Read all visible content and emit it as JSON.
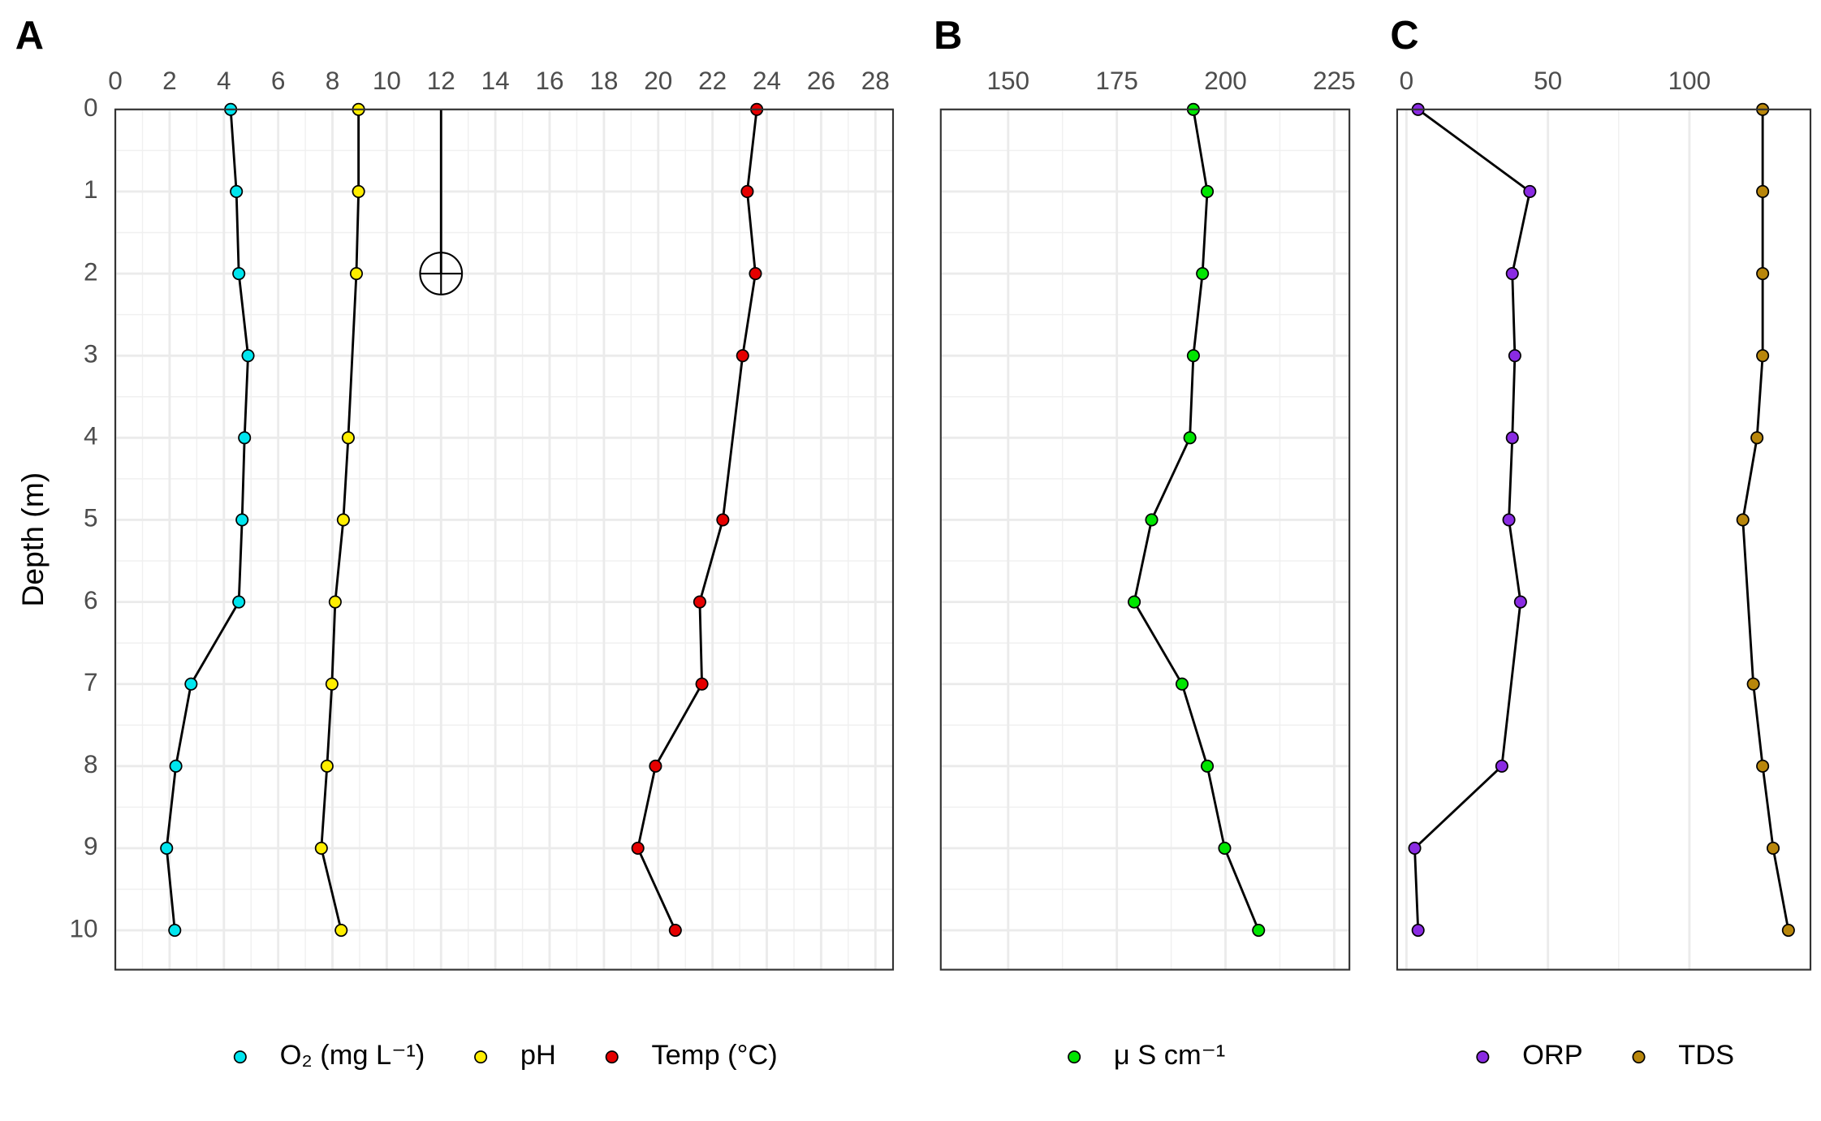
{
  "chart_data": [
    {
      "type": "line",
      "panel": "A",
      "y_label": "Depth (m)",
      "xlim": [
        0,
        28.65
      ],
      "xticks": [
        0,
        2,
        4,
        6,
        8,
        10,
        12,
        14,
        16,
        18,
        20,
        22,
        24,
        26,
        28
      ],
      "ylim": [
        0,
        10.48
      ],
      "yticks": [
        0,
        1,
        2,
        3,
        4,
        5,
        6,
        7,
        8,
        9,
        10
      ],
      "ygrid": true,
      "marker": {
        "x": 12,
        "y": 2
      },
      "series": [
        {
          "name": "O₂ (mg L⁻¹)",
          "color": "#00e5ee",
          "x": [
            4.25,
            4.46,
            4.55,
            4.89,
            4.76,
            4.67,
            4.55,
            2.79,
            2.23,
            1.89,
            2.19
          ],
          "y": [
            0,
            1,
            2,
            3,
            4,
            5,
            6,
            7,
            8,
            9,
            10
          ]
        },
        {
          "name": "pH",
          "color": "#ffee00",
          "x": [
            8.96,
            8.96,
            8.88,
            8.58,
            8.4,
            8.1,
            7.98,
            7.8,
            7.59,
            8.32
          ],
          "y": [
            0,
            1,
            2,
            4,
            5,
            6,
            7,
            8,
            9,
            10
          ]
        },
        {
          "name": "Temp (°C)",
          "color": "#e50000",
          "x": [
            23.63,
            23.28,
            23.58,
            23.11,
            22.38,
            21.53,
            21.61,
            19.9,
            19.25,
            20.63
          ],
          "y": [
            0,
            1,
            2,
            3,
            5,
            6,
            7,
            8,
            9,
            10
          ]
        }
      ]
    },
    {
      "type": "line",
      "panel": "B",
      "xlim": [
        134.5,
        228.5
      ],
      "xticks": [
        150,
        175,
        200,
        225
      ],
      "ylim": [
        0,
        10.48
      ],
      "ygrid": true,
      "series": [
        {
          "name": "μ S cm⁻¹",
          "color": "#00e500",
          "x": [
            192.6,
            195.8,
            194.7,
            192.6,
            191.8,
            183.0,
            179.0,
            190.0,
            195.8,
            199.8,
            207.6
          ],
          "y": [
            0,
            1,
            2,
            3,
            4,
            5,
            6,
            7,
            8,
            9,
            10
          ]
        }
      ]
    },
    {
      "type": "line",
      "panel": "C",
      "xlim": [
        -3.3,
        142.8
      ],
      "xticks": [
        0,
        50,
        100
      ],
      "ylim": [
        0,
        10.48
      ],
      "ygrid": false,
      "series": [
        {
          "name": "ORP",
          "color": "#8a2be2",
          "x": [
            4.1,
            43.6,
            37.4,
            38.3,
            37.4,
            36.2,
            40.3,
            33.7,
            2.9,
            4.1
          ],
          "y": [
            0,
            1,
            2,
            3,
            4,
            5,
            6,
            8,
            9,
            10
          ]
        },
        {
          "name": "TDS",
          "color": "#b8860b",
          "x": [
            125.9,
            125.9,
            125.9,
            125.9,
            123.9,
            118.9,
            122.6,
            125.9,
            129.6,
            135.0
          ],
          "y": [
            0,
            1,
            2,
            3,
            4,
            5,
            7,
            8,
            9,
            10
          ]
        }
      ]
    }
  ]
}
